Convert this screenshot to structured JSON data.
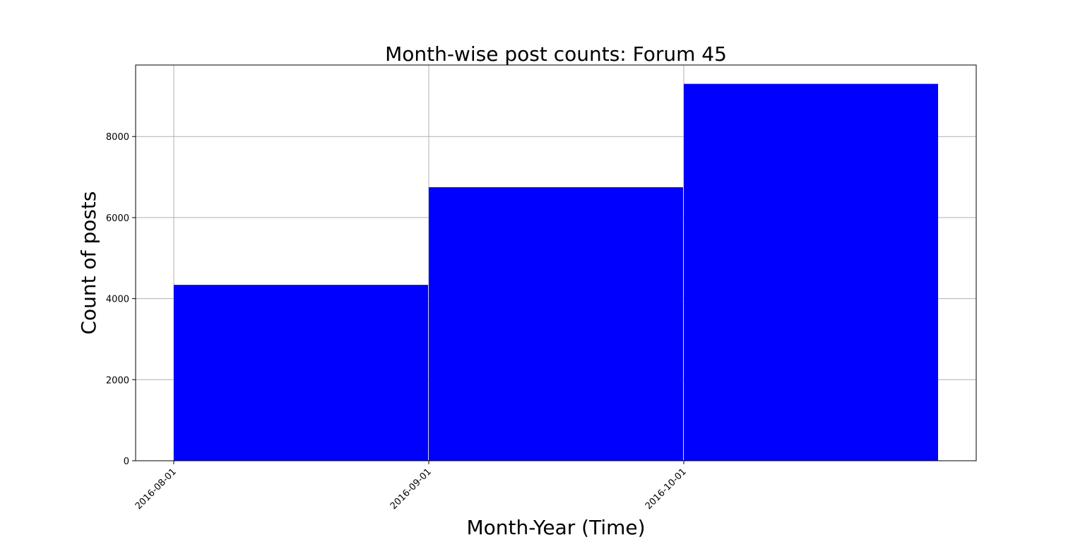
{
  "chart_data": {
    "type": "bar",
    "title": "Month-wise post counts: Forum 45",
    "xlabel": "Month-Year (Time)",
    "ylabel": "Count of posts",
    "categories": [
      "2016-08-01",
      "2016-09-01",
      "2016-10-01"
    ],
    "values": [
      4340,
      6750,
      9300
    ],
    "x_ticks": [
      "2016-08-01",
      "2016-09-01",
      "2016-10-01"
    ],
    "y_ticks": [
      0,
      2000,
      4000,
      6000,
      8000
    ],
    "ylim": [
      0,
      9765
    ],
    "grid": true,
    "bar_color": "#0000ff",
    "legend": "none"
  }
}
